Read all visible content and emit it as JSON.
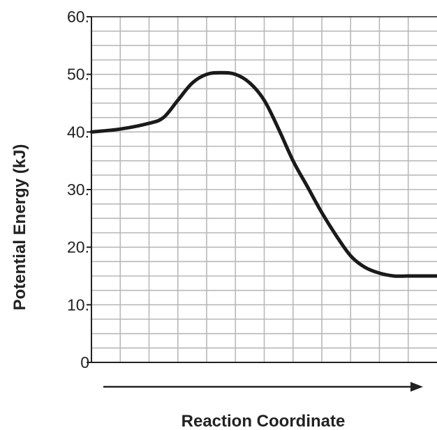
{
  "chart_data": {
    "type": "line",
    "xlabel": "Reaction Coordinate",
    "ylabel": "Potential Energy (kJ)",
    "ylim": [
      0,
      60
    ],
    "yticks": [
      {
        "value": 0,
        "label": "0"
      },
      {
        "value": 10,
        "label": "10."
      },
      {
        "value": 20,
        "label": "20."
      },
      {
        "value": 30,
        "label": "30."
      },
      {
        "value": 40,
        "label": "40."
      },
      {
        "value": 50,
        "label": "50."
      },
      {
        "value": 60,
        "label": "60."
      }
    ],
    "grid": true,
    "x_ticks_labeled": false,
    "series": [
      {
        "values": [
          [
            0,
            40
          ],
          [
            1,
            40.5
          ],
          [
            2,
            41.5
          ],
          [
            2.5,
            42.5
          ],
          [
            3,
            45.5
          ],
          [
            3.5,
            48.5
          ],
          [
            4,
            50
          ],
          [
            4.5,
            50.3
          ],
          [
            5,
            50
          ],
          [
            5.5,
            48.5
          ],
          [
            6,
            45.5
          ],
          [
            6.5,
            40.5
          ],
          [
            7,
            35
          ],
          [
            7.5,
            30.5
          ],
          [
            8,
            26
          ],
          [
            8.5,
            22
          ],
          [
            9,
            18.5
          ],
          [
            9.5,
            16.5
          ],
          [
            10,
            15.5
          ],
          [
            10.5,
            15
          ],
          [
            11,
            15
          ],
          [
            12,
            15
          ]
        ]
      }
    ],
    "x_axis_arrow": true,
    "colors": {
      "line": "#1a1a1a",
      "grid": "#b8b8b8",
      "axis": "#222222"
    }
  }
}
